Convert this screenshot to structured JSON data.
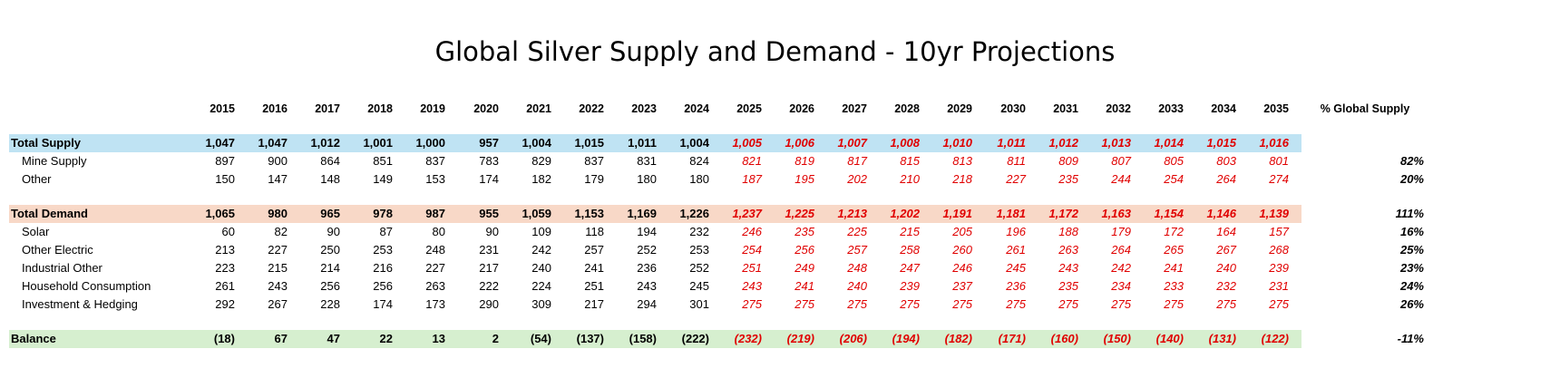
{
  "title": "Global Silver Supply and Demand - 10yr Projections",
  "header": {
    "years": [
      "2015",
      "2016",
      "2017",
      "2018",
      "2019",
      "2020",
      "2021",
      "2022",
      "2023",
      "2024",
      "2025",
      "2026",
      "2027",
      "2028",
      "2029",
      "2030",
      "2031",
      "2032",
      "2033",
      "2034",
      "2035"
    ],
    "pct_label": "% Global Supply"
  },
  "rows": {
    "total_supply": {
      "label": "Total Supply",
      "values": [
        "1,047",
        "1,047",
        "1,012",
        "1,001",
        "1,000",
        "957",
        "1,004",
        "1,015",
        "1,011",
        "1,004",
        "1,005",
        "1,006",
        "1,007",
        "1,008",
        "1,010",
        "1,011",
        "1,012",
        "1,013",
        "1,014",
        "1,015",
        "1,016"
      ],
      "pct": ""
    },
    "mine_supply": {
      "label": "Mine Supply",
      "values": [
        "897",
        "900",
        "864",
        "851",
        "837",
        "783",
        "829",
        "837",
        "831",
        "824",
        "821",
        "819",
        "817",
        "815",
        "813",
        "811",
        "809",
        "807",
        "805",
        "803",
        "801"
      ],
      "pct": "82%"
    },
    "other_supply": {
      "label": "Other",
      "values": [
        "150",
        "147",
        "148",
        "149",
        "153",
        "174",
        "182",
        "179",
        "180",
        "180",
        "187",
        "195",
        "202",
        "210",
        "218",
        "227",
        "235",
        "244",
        "254",
        "264",
        "274"
      ],
      "pct": "20%"
    },
    "total_demand": {
      "label": "Total Demand",
      "values": [
        "1,065",
        "980",
        "965",
        "978",
        "987",
        "955",
        "1,059",
        "1,153",
        "1,169",
        "1,226",
        "1,237",
        "1,225",
        "1,213",
        "1,202",
        "1,191",
        "1,181",
        "1,172",
        "1,163",
        "1,154",
        "1,146",
        "1,139"
      ],
      "pct": "111%"
    },
    "solar": {
      "label": "Solar",
      "values": [
        "60",
        "82",
        "90",
        "87",
        "80",
        "90",
        "109",
        "118",
        "194",
        "232",
        "246",
        "235",
        "225",
        "215",
        "205",
        "196",
        "188",
        "179",
        "172",
        "164",
        "157"
      ],
      "pct": "16%"
    },
    "other_electric": {
      "label": "Other Electric",
      "values": [
        "213",
        "227",
        "250",
        "253",
        "248",
        "231",
        "242",
        "257",
        "252",
        "253",
        "254",
        "256",
        "257",
        "258",
        "260",
        "261",
        "263",
        "264",
        "265",
        "267",
        "268"
      ],
      "pct": "25%"
    },
    "industrial_other": {
      "label": "Industrial Other",
      "values": [
        "223",
        "215",
        "214",
        "216",
        "227",
        "217",
        "240",
        "241",
        "236",
        "252",
        "251",
        "249",
        "248",
        "247",
        "246",
        "245",
        "243",
        "242",
        "241",
        "240",
        "239"
      ],
      "pct": "23%"
    },
    "household": {
      "label": "Household Consumption",
      "values": [
        "261",
        "243",
        "256",
        "256",
        "263",
        "222",
        "224",
        "251",
        "243",
        "245",
        "243",
        "241",
        "240",
        "239",
        "237",
        "236",
        "235",
        "234",
        "233",
        "232",
        "231"
      ],
      "pct": "24%"
    },
    "investment": {
      "label": "Investment & Hedging",
      "values": [
        "292",
        "267",
        "228",
        "174",
        "173",
        "290",
        "309",
        "217",
        "294",
        "301",
        "275",
        "275",
        "275",
        "275",
        "275",
        "275",
        "275",
        "275",
        "275",
        "275",
        "275"
      ],
      "pct": "26%"
    },
    "balance": {
      "label": "Balance",
      "values": [
        "(18)",
        "67",
        "47",
        "22",
        "13",
        "2",
        "(54)",
        "(137)",
        "(158)",
        "(222)",
        "(232)",
        "(219)",
        "(206)",
        "(194)",
        "(182)",
        "(171)",
        "(160)",
        "(150)",
        "(140)",
        "(131)",
        "(122)"
      ],
      "pct": "-11%"
    }
  },
  "colors": {
    "supply_band": "#bfe3f3",
    "demand_band": "#f8d8c7",
    "balance_band": "#d6efcf",
    "projection_text": "#e00000"
  }
}
